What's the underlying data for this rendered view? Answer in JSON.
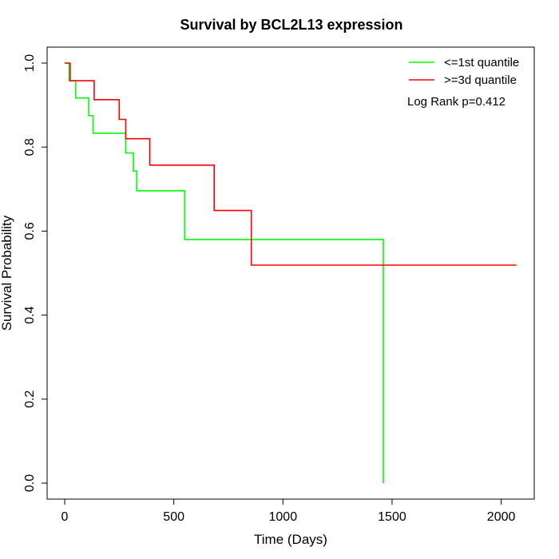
{
  "chart_data": {
    "type": "line",
    "title": "Survival by BCL2L13 expression",
    "xlabel": "Time (Days)",
    "ylabel": "Survival Probability",
    "xlim": [
      0,
      2100
    ],
    "ylim": [
      0,
      1.0
    ],
    "x_ticks": [
      0,
      500,
      1000,
      1500,
      2000
    ],
    "y_ticks": [
      0.0,
      0.2,
      0.4,
      0.6,
      0.8,
      1.0
    ],
    "x_tick_labels": [
      "0",
      "500",
      "1000",
      "1500",
      "2000"
    ],
    "y_tick_labels": [
      "0.0",
      "0.2",
      "0.4",
      "0.6",
      "0.8",
      "1.0"
    ],
    "grid": false,
    "legend_position": "top-right",
    "annotation": "Log Rank p=0.412",
    "series": [
      {
        "name": "<=1st quantile",
        "color": "#00ff00",
        "steps": [
          [
            0,
            1.0
          ],
          [
            20,
            1.0
          ],
          [
            20,
            0.958
          ],
          [
            50,
            0.958
          ],
          [
            50,
            0.917
          ],
          [
            110,
            0.917
          ],
          [
            110,
            0.875
          ],
          [
            130,
            0.875
          ],
          [
            130,
            0.833
          ],
          [
            280,
            0.833
          ],
          [
            280,
            0.786
          ],
          [
            315,
            0.786
          ],
          [
            315,
            0.743
          ],
          [
            330,
            0.743
          ],
          [
            330,
            0.696
          ],
          [
            550,
            0.696
          ],
          [
            550,
            0.58
          ],
          [
            1460,
            0.58
          ],
          [
            1460,
            0.0
          ]
        ]
      },
      {
        "name": ">=3d quantile",
        "color": "#ff0000",
        "steps": [
          [
            0,
            1.0
          ],
          [
            25,
            1.0
          ],
          [
            25,
            0.958
          ],
          [
            135,
            0.958
          ],
          [
            135,
            0.913
          ],
          [
            250,
            0.913
          ],
          [
            250,
            0.866
          ],
          [
            280,
            0.866
          ],
          [
            280,
            0.82
          ],
          [
            390,
            0.82
          ],
          [
            390,
            0.757
          ],
          [
            685,
            0.757
          ],
          [
            685,
            0.649
          ],
          [
            855,
            0.649
          ],
          [
            855,
            0.519
          ],
          [
            2070,
            0.519
          ]
        ]
      }
    ]
  }
}
